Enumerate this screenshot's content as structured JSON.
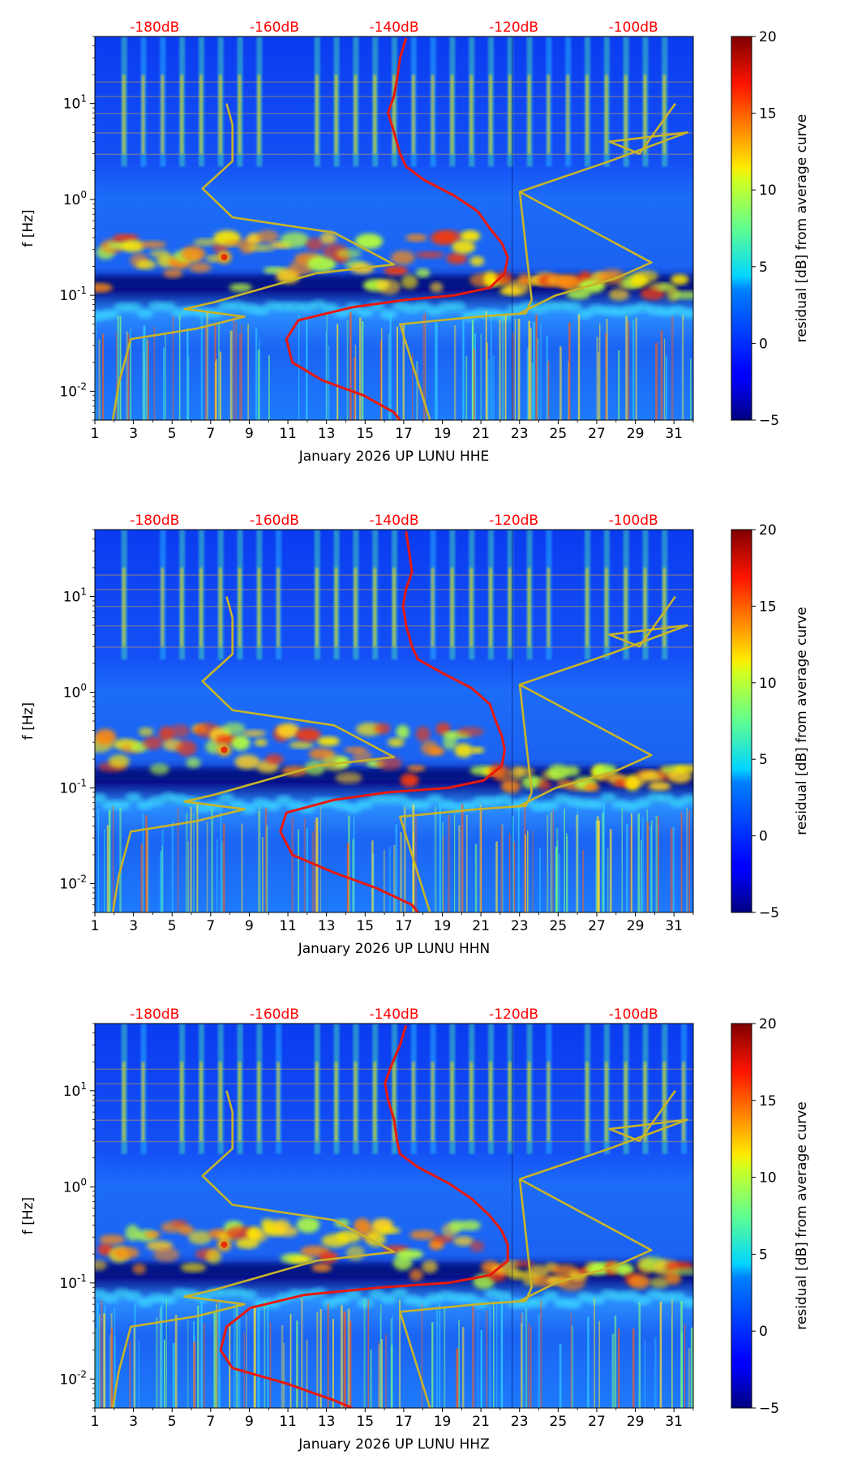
{
  "chart_data": [
    {
      "type": "heatmap",
      "subtype": "spectrogram-residual",
      "xlabel": "January 2026 UP LUNU  HHE",
      "ylabel": "f [Hz]",
      "x_ticks": [
        "1",
        "3",
        "5",
        "7",
        "9",
        "11",
        "13",
        "15",
        "17",
        "19",
        "21",
        "23",
        "25",
        "27",
        "29",
        "31"
      ],
      "y_ticks": [
        "10^-2",
        "10^-1",
        "10^0",
        "10^1"
      ],
      "xlim": [
        1,
        32
      ],
      "ylim": [
        0.005,
        50
      ],
      "top_axis_ticks": [
        "-180dB",
        "-160dB",
        "-140dB",
        "-120dB",
        "-100dB"
      ],
      "top_axis_range_db": [
        -190,
        -90
      ],
      "colorbar": {
        "label": "residual [dB] from average curve",
        "range": [
          -5,
          20
        ],
        "ticks": [
          "20",
          "15",
          "10",
          "5",
          "0",
          "−5"
        ]
      },
      "series": [
        {
          "name": "average-psd-curve",
          "color": "#e8180c",
          "x_db": [
            -138,
            -139,
            -139.5,
            -140,
            -141,
            -140,
            -139,
            -138,
            -135,
            -130,
            -126,
            -124,
            -122,
            -121,
            -121.5,
            -124,
            -130,
            -138,
            -147,
            -156,
            -158,
            -157,
            -152,
            -145,
            -140,
            -139
          ],
          "f_hz": [
            48,
            30,
            18,
            12,
            8,
            5,
            3,
            2.2,
            1.6,
            1.1,
            0.75,
            0.5,
            0.35,
            0.25,
            0.17,
            0.12,
            0.1,
            0.09,
            0.075,
            0.055,
            0.035,
            0.02,
            0.013,
            0.009,
            0.006,
            0.005
          ]
        },
        {
          "name": "nlnm-reference",
          "color": "#c8b428",
          "x_db": [
            -168,
            -167,
            -167,
            -172,
            -167,
            -150,
            -140,
            -153,
            -170,
            -175,
            -165,
            -173,
            -184,
            -186,
            -187
          ],
          "f_hz": [
            10,
            6,
            2.5,
            1.3,
            0.65,
            0.45,
            0.21,
            0.17,
            0.085,
            0.072,
            0.06,
            0.045,
            0.035,
            0.012,
            0.005
          ]
        },
        {
          "name": "nhnm-reference",
          "color": "#c8b428",
          "x_db": [
            -134,
            -139,
            -126,
            -118,
            -117,
            -119,
            -104,
            -91,
            -104,
            -99,
            -93
          ],
          "f_hz": [
            0.005,
            0.05,
            0.06,
            0.065,
            0.09,
            1.2,
            2.5,
            5,
            4,
            3,
            10
          ]
        },
        {
          "name": "nhnm-reference-2",
          "color": "#c8b428",
          "x_db": [
            -119,
            -97,
            -103,
            -113,
            -119
          ],
          "f_hz": [
            1.2,
            0.22,
            0.15,
            0.1,
            0.065
          ]
        }
      ]
    },
    {
      "type": "heatmap",
      "subtype": "spectrogram-residual",
      "xlabel": "January 2026 UP LUNU  HHN",
      "ylabel": "f [Hz]",
      "x_ticks": [
        "1",
        "3",
        "5",
        "7",
        "9",
        "11",
        "13",
        "15",
        "17",
        "19",
        "21",
        "23",
        "25",
        "27",
        "29",
        "31"
      ],
      "y_ticks": [
        "10^-2",
        "10^-1",
        "10^0",
        "10^1"
      ],
      "xlim": [
        1,
        32
      ],
      "ylim": [
        0.005,
        50
      ],
      "top_axis_ticks": [
        "-180dB",
        "-160dB",
        "-140dB",
        "-120dB",
        "-100dB"
      ],
      "top_axis_range_db": [
        -190,
        -90
      ],
      "colorbar": {
        "label": "residual [dB] from average curve",
        "range": [
          -5,
          20
        ],
        "ticks": [
          "20",
          "15",
          "10",
          "5",
          "0",
          "−5"
        ]
      },
      "series": [
        {
          "name": "average-psd-curve",
          "color": "#e8180c",
          "x_db": [
            -138,
            -137.5,
            -137,
            -138,
            -138.5,
            -138,
            -137,
            -136,
            -132,
            -127,
            -124,
            -123,
            -122,
            -121.5,
            -122,
            -125,
            -131,
            -141,
            -150,
            -158,
            -159,
            -157,
            -150,
            -143,
            -137,
            -136
          ],
          "f_hz": [
            48,
            30,
            18,
            12,
            8,
            5,
            3,
            2.2,
            1.6,
            1.1,
            0.75,
            0.5,
            0.35,
            0.25,
            0.17,
            0.12,
            0.1,
            0.09,
            0.075,
            0.055,
            0.035,
            0.02,
            0.013,
            0.009,
            0.006,
            0.005
          ]
        },
        {
          "name": "nlnm-reference",
          "color": "#c8b428",
          "x_db": [
            -168,
            -167,
            -167,
            -172,
            -167,
            -150,
            -140,
            -153,
            -170,
            -175,
            -165,
            -173,
            -184,
            -186,
            -187
          ],
          "f_hz": [
            10,
            6,
            2.5,
            1.3,
            0.65,
            0.45,
            0.21,
            0.17,
            0.085,
            0.072,
            0.06,
            0.045,
            0.035,
            0.012,
            0.005
          ]
        },
        {
          "name": "nhnm-reference",
          "color": "#c8b428",
          "x_db": [
            -134,
            -139,
            -126,
            -118,
            -117,
            -119,
            -104,
            -91,
            -104,
            -99,
            -93
          ],
          "f_hz": [
            0.005,
            0.05,
            0.06,
            0.065,
            0.09,
            1.2,
            2.5,
            5,
            4,
            3,
            10
          ]
        },
        {
          "name": "nhnm-reference-2",
          "color": "#c8b428",
          "x_db": [
            -119,
            -97,
            -103,
            -113,
            -119
          ],
          "f_hz": [
            1.2,
            0.22,
            0.15,
            0.1,
            0.065
          ]
        }
      ]
    },
    {
      "type": "heatmap",
      "subtype": "spectrogram-residual",
      "xlabel": "January 2026 UP LUNU  HHZ",
      "ylabel": "f [Hz]",
      "x_ticks": [
        "1",
        "3",
        "5",
        "7",
        "9",
        "11",
        "13",
        "15",
        "17",
        "19",
        "21",
        "23",
        "25",
        "27",
        "29",
        "31"
      ],
      "y_ticks": [
        "10^-2",
        "10^-1",
        "10^0",
        "10^1"
      ],
      "xlim": [
        1,
        32
      ],
      "ylim": [
        0.005,
        50
      ],
      "top_axis_ticks": [
        "-180dB",
        "-160dB",
        "-140dB",
        "-120dB",
        "-100dB"
      ],
      "top_axis_range_db": [
        -190,
        -90
      ],
      "colorbar": {
        "label": "residual [dB] from average curve",
        "range": [
          -5,
          20
        ],
        "ticks": [
          "20",
          "15",
          "10",
          "5",
          "0",
          "−5"
        ]
      },
      "series": [
        {
          "name": "average-psd-curve",
          "color": "#e8180c",
          "x_db": [
            -138,
            -139,
            -140.5,
            -141.5,
            -141,
            -140,
            -139.5,
            -139,
            -136,
            -131,
            -127,
            -124,
            -122,
            -121,
            -121,
            -124,
            -131,
            -142,
            -155,
            -164,
            -168,
            -169,
            -167,
            -158,
            -150,
            -147
          ],
          "f_hz": [
            48,
            30,
            18,
            12,
            8,
            5,
            3,
            2.2,
            1.6,
            1.1,
            0.75,
            0.5,
            0.35,
            0.25,
            0.17,
            0.12,
            0.1,
            0.09,
            0.075,
            0.055,
            0.035,
            0.02,
            0.013,
            0.009,
            0.006,
            0.005
          ]
        },
        {
          "name": "nlnm-reference",
          "color": "#c8b428",
          "x_db": [
            -168,
            -167,
            -167,
            -172,
            -167,
            -150,
            -140,
            -153,
            -170,
            -175,
            -165,
            -173,
            -184,
            -186,
            -187
          ],
          "f_hz": [
            10,
            6,
            2.5,
            1.3,
            0.65,
            0.45,
            0.21,
            0.17,
            0.085,
            0.072,
            0.06,
            0.045,
            0.035,
            0.012,
            0.005
          ]
        },
        {
          "name": "nhnm-reference",
          "color": "#c8b428",
          "x_db": [
            -134,
            -139,
            -126,
            -118,
            -117,
            -119,
            -104,
            -91,
            -104,
            -99,
            -93
          ],
          "f_hz": [
            0.005,
            0.05,
            0.06,
            0.065,
            0.09,
            1.2,
            2.5,
            5,
            4,
            3,
            10
          ]
        },
        {
          "name": "nhnm-reference-2",
          "color": "#c8b428",
          "x_db": [
            -119,
            -97,
            -103,
            -113,
            -119
          ],
          "f_hz": [
            1.2,
            0.22,
            0.15,
            0.1,
            0.065
          ]
        }
      ]
    }
  ]
}
